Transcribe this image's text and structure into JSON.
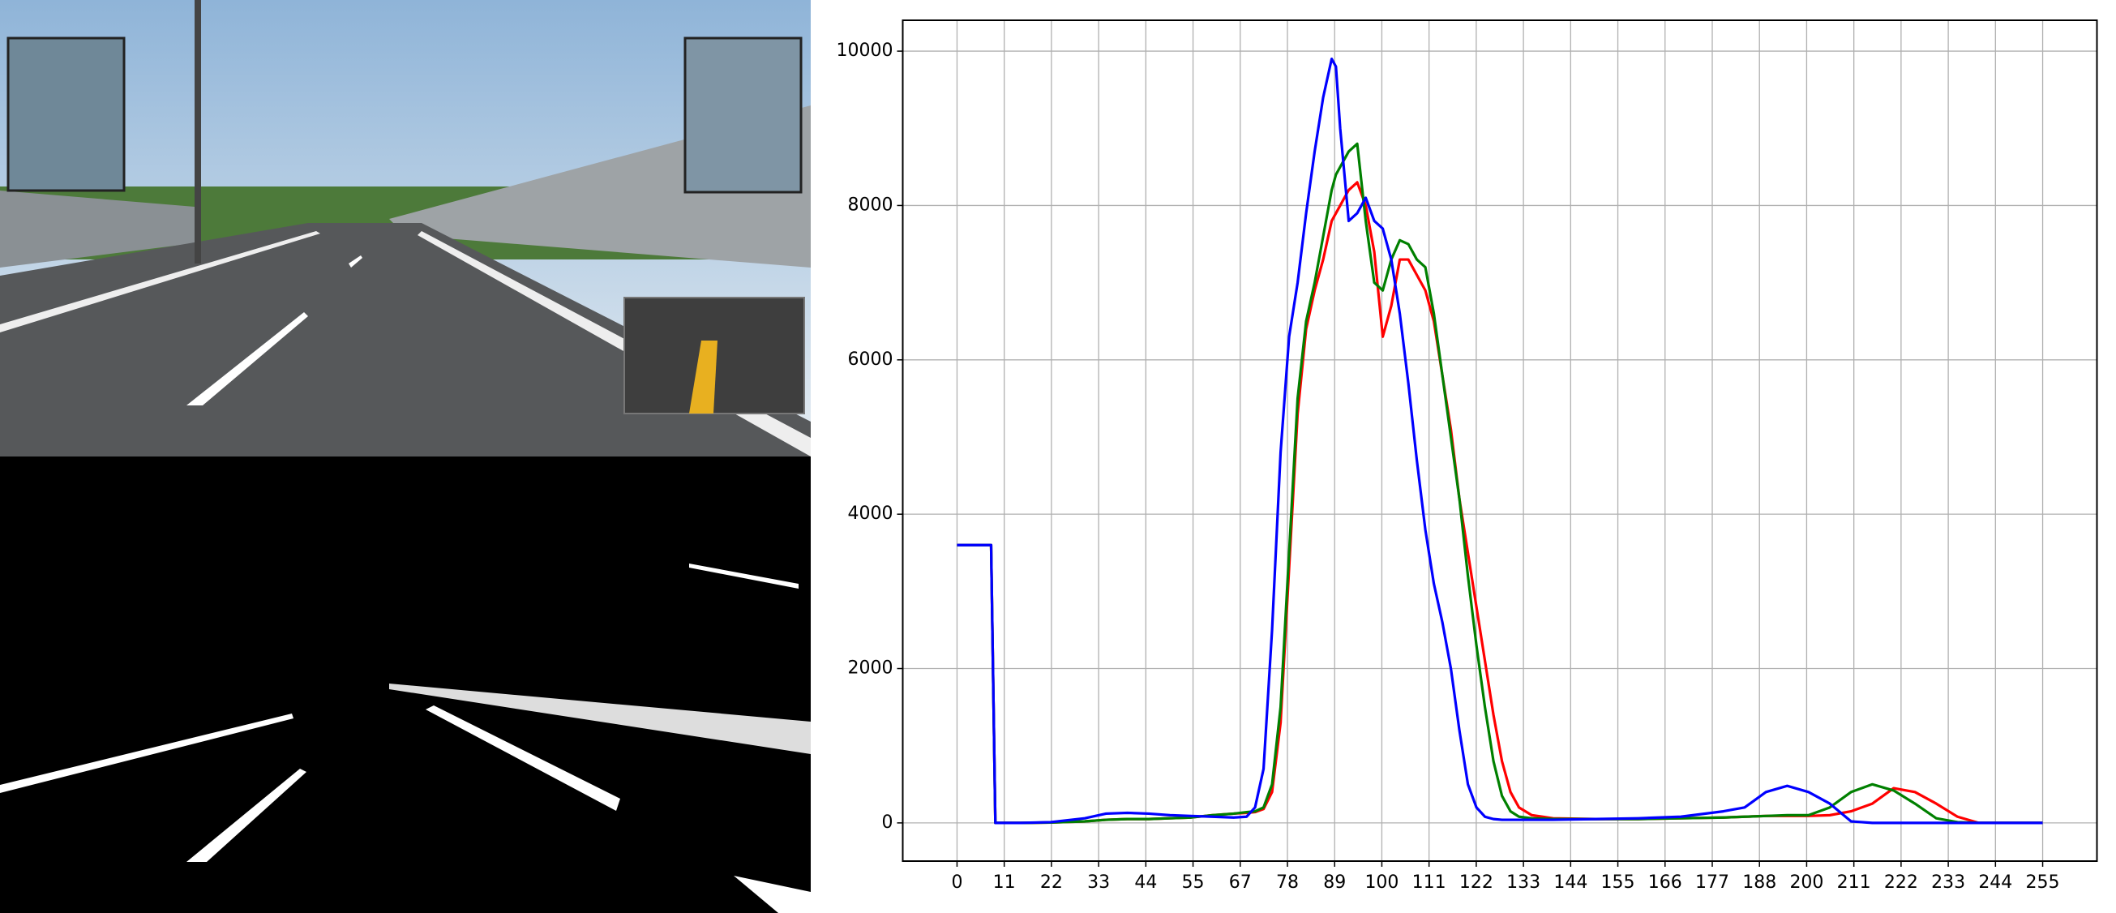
{
  "chart_data": {
    "type": "line",
    "x": [
      0,
      8,
      9,
      15,
      22,
      30,
      35,
      40,
      45,
      50,
      55,
      60,
      65,
      68,
      70,
      72,
      74,
      76,
      78,
      80,
      82,
      84,
      86,
      88,
      89,
      90,
      92,
      94,
      96,
      98,
      100,
      102,
      104,
      106,
      108,
      110,
      112,
      114,
      116,
      118,
      120,
      122,
      124,
      126,
      128,
      130,
      132,
      135,
      140,
      150,
      160,
      170,
      180,
      185,
      190,
      195,
      200,
      205,
      210,
      215,
      220,
      225,
      230,
      235,
      240,
      245,
      250,
      255
    ],
    "series": [
      {
        "name": "r",
        "color": "#ff0000",
        "values": [
          3600,
          3600,
          0,
          0,
          5,
          20,
          40,
          50,
          50,
          60,
          70,
          100,
          120,
          130,
          140,
          180,
          400,
          1300,
          3300,
          5300,
          6400,
          6900,
          7300,
          7800,
          7900,
          8000,
          8200,
          8300,
          8000,
          7400,
          6300,
          6700,
          7300,
          7300,
          7100,
          6900,
          6500,
          5800,
          5100,
          4200,
          3500,
          2800,
          2100,
          1400,
          800,
          400,
          200,
          100,
          60,
          50,
          50,
          60,
          70,
          80,
          90,
          90,
          90,
          100,
          150,
          250,
          450,
          400,
          250,
          80,
          0,
          0,
          0,
          0
        ]
      },
      {
        "name": "g",
        "color": "#008000",
        "values": [
          3600,
          3600,
          0,
          0,
          5,
          20,
          40,
          50,
          50,
          60,
          70,
          100,
          120,
          140,
          150,
          200,
          500,
          1500,
          3500,
          5500,
          6500,
          7000,
          7600,
          8200,
          8400,
          8500,
          8700,
          8800,
          7800,
          7000,
          6900,
          7300,
          7550,
          7500,
          7300,
          7200,
          6600,
          5800,
          5000,
          4200,
          3200,
          2300,
          1500,
          800,
          350,
          150,
          80,
          60,
          50,
          50,
          50,
          60,
          70,
          80,
          90,
          100,
          100,
          200,
          400,
          500,
          420,
          250,
          60,
          10,
          0,
          0,
          0,
          0
        ]
      },
      {
        "name": "b",
        "color": "#0000ff",
        "values": [
          3600,
          3600,
          0,
          0,
          10,
          60,
          120,
          130,
          120,
          100,
          90,
          80,
          70,
          80,
          200,
          700,
          2500,
          4800,
          6300,
          7000,
          7900,
          8700,
          9400,
          9900,
          9800,
          9000,
          7800,
          7900,
          8100,
          7800,
          7700,
          7300,
          6600,
          5700,
          4700,
          3800,
          3100,
          2600,
          2000,
          1200,
          500,
          200,
          80,
          50,
          40,
          40,
          40,
          40,
          40,
          50,
          60,
          80,
          150,
          200,
          400,
          480,
          400,
          250,
          20,
          0,
          0,
          0,
          0,
          0,
          0,
          0,
          0,
          0
        ]
      }
    ],
    "xlim": [
      -12.75,
      267.75
    ],
    "ylim": [
      -495,
      10400
    ],
    "xticks": [
      0,
      {
        "value": 11.087,
        "label": "11"
      },
      {
        "value": 22.174,
        "label": "22"
      },
      {
        "value": 33.261,
        "label": "33"
      },
      {
        "value": 44.348,
        "label": "44"
      },
      {
        "value": 55.435,
        "label": "55"
      },
      {
        "value": 66.522,
        "label": "67"
      },
      {
        "value": 77.609,
        "label": "78"
      },
      {
        "value": 88.696,
        "label": "89"
      },
      {
        "value": 99.783,
        "label": "100"
      },
      {
        "value": 110.87,
        "label": "111"
      },
      {
        "value": 121.957,
        "label": "122"
      },
      {
        "value": 133.043,
        "label": "133"
      },
      {
        "value": 144.13,
        "label": "144"
      },
      {
        "value": 155.217,
        "label": "155"
      },
      {
        "value": 166.304,
        "label": "166"
      },
      {
        "value": 177.391,
        "label": "177"
      },
      {
        "value": 188.478,
        "label": "188"
      },
      {
        "value": 199.565,
        "label": "200"
      },
      {
        "value": 210.652,
        "label": "211"
      },
      {
        "value": 221.739,
        "label": "222"
      },
      {
        "value": 232.826,
        "label": "233"
      },
      {
        "value": 243.913,
        "label": "244"
      },
      255
    ],
    "yticks": [
      0,
      2000,
      4000,
      6000,
      8000,
      10000
    ],
    "grid": true
  }
}
